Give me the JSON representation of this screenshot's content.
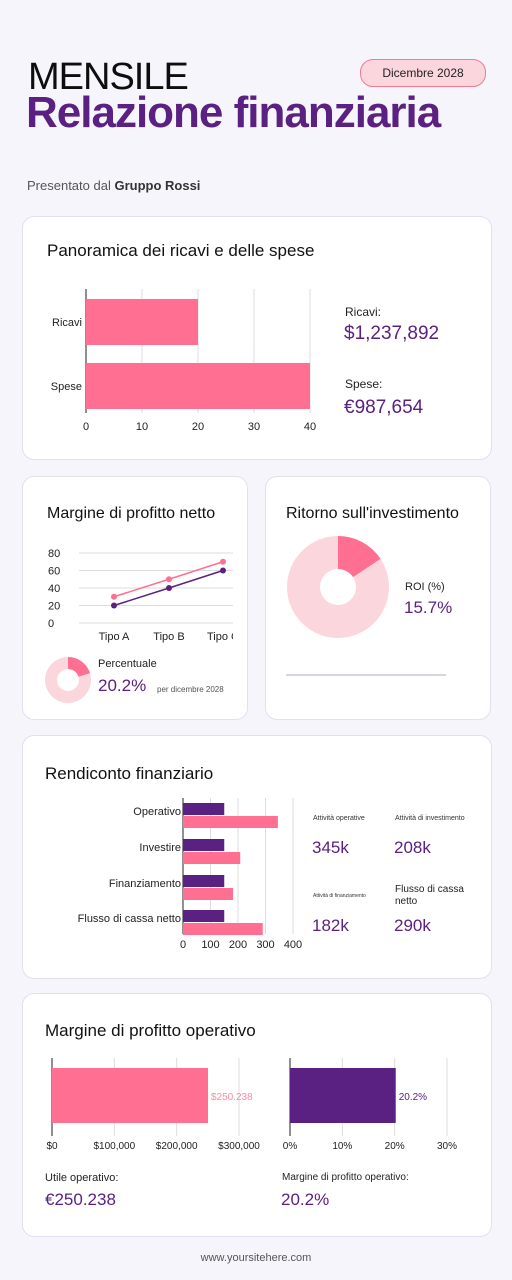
{
  "header": {
    "title_line1": "MENSILE",
    "title_line2": "Relazione finanziaria",
    "date_badge": "Dicembre 2028",
    "presented_by_prefix": "Presentato dal",
    "presented_by_name": "Gruppo Rossi"
  },
  "colors": {
    "pink": "#ff6f91",
    "purple": "#5a2182",
    "light_pink": "#fcd6dd",
    "accent_text": "#5a2182"
  },
  "overview": {
    "title": "Panoramica dei ricavi e delle spese",
    "revenue_label": "Ricavi:",
    "revenue_value": "$1,237,892",
    "expenses_label": "Spese:",
    "expenses_value": "€987,654"
  },
  "net_margin": {
    "title": "Margine di profitto netto",
    "percent_label": "Percentuale",
    "percent_value": "20.2%",
    "note": "per dicembre 2028",
    "donut_fraction": 0.202
  },
  "roi": {
    "title": "Ritorno sull'investimento",
    "label": "ROI (%)",
    "value": "15.7%",
    "donut_fraction": 0.157
  },
  "cash_flow": {
    "title": "Rendiconto finanziario",
    "stats": [
      {
        "label": "Attività operative",
        "value": "345k"
      },
      {
        "label": "Attività di investimento",
        "value": "208k"
      },
      {
        "label": "Attività di finanziamento",
        "value": "182k"
      },
      {
        "label": "Flusso di cassa netto",
        "value": "290k"
      }
    ]
  },
  "operating_margin": {
    "title": "Margine di profitto operativo",
    "profit_label": "Utile operativo:",
    "profit_value": "€250.238",
    "margin_label": "Margine di profitto operativo:",
    "margin_value": "20.2%"
  },
  "footer": {
    "url": "www.yoursitehere.com"
  },
  "chart_data": [
    {
      "type": "bar",
      "orientation": "horizontal",
      "categories": [
        "Ricavi",
        "Spese"
      ],
      "values": [
        20,
        40
      ],
      "xlim": [
        0,
        40
      ],
      "xticks": [
        0,
        10,
        20,
        30,
        40
      ],
      "grid": true
    },
    {
      "type": "line",
      "categories": [
        "Tipo A",
        "Tipo B",
        "Tipo C"
      ],
      "series": [
        {
          "values": [
            30,
            50,
            70
          ]
        },
        {
          "values": [
            20,
            40,
            60
          ]
        }
      ],
      "ylim": [
        0,
        80
      ],
      "yticks": [
        0,
        20,
        40,
        60,
        80
      ],
      "grid": true
    },
    {
      "type": "bar",
      "orientation": "horizontal",
      "categories": [
        "Operativo",
        "Investire",
        "Finanziamento",
        "Flusso di cassa netto"
      ],
      "series": [
        {
          "values": [
            150,
            150,
            150,
            150
          ]
        },
        {
          "values": [
            345,
            208,
            182,
            290
          ]
        }
      ],
      "xlim": [
        0,
        400
      ],
      "xticks": [
        0,
        100,
        200,
        300,
        400
      ],
      "grid": true
    },
    {
      "type": "bar",
      "orientation": "horizontal",
      "values": [
        250238
      ],
      "data_labels": [
        "$250.238"
      ],
      "xlim": [
        0,
        300000
      ],
      "xticks": [
        "$0",
        "$100,000",
        "$200,000",
        "$300,000"
      ],
      "grid": true
    },
    {
      "type": "bar",
      "orientation": "horizontal",
      "values": [
        20.2
      ],
      "data_labels": [
        "20.2%"
      ],
      "xlim": [
        0,
        30
      ],
      "xticks": [
        "0%",
        "10%",
        "20%",
        "30%"
      ],
      "grid": true
    }
  ]
}
